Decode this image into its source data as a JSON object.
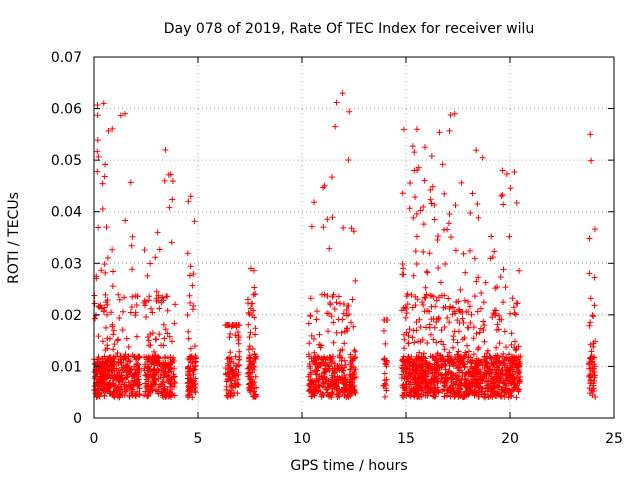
{
  "chart_data": {
    "type": "scatter",
    "title": "Day 078 of 2019, Rate Of TEC Index for receiver wilu",
    "xlabel": "GPS time / hours",
    "ylabel": "ROTI / TECUs",
    "xlim": [
      0,
      25
    ],
    "ylim": [
      0,
      0.07
    ],
    "x_ticks": [
      0,
      5,
      10,
      15,
      20,
      25
    ],
    "x_tick_labels": [
      "0",
      "5",
      "10",
      "15",
      "20",
      "25"
    ],
    "y_ticks": [
      0,
      0.01,
      0.02,
      0.03,
      0.04,
      0.05,
      0.06,
      0.07
    ],
    "y_tick_labels": [
      "0",
      "0.01",
      "0.02",
      "0.03",
      "0.04",
      "0.05",
      "0.06",
      "0.07"
    ],
    "grid": true,
    "marker": "plus",
    "series": [
      {
        "name": "ROTI",
        "color": "#ff0000",
        "clusters": [
          {
            "start": 0.0,
            "end": 1.0,
            "count": 260,
            "peak": 0.061
          },
          {
            "start": 1.05,
            "end": 2.2,
            "count": 190,
            "peak": 0.059
          },
          {
            "start": 2.4,
            "end": 3.3,
            "count": 150,
            "peak": 0.036
          },
          {
            "start": 3.3,
            "end": 3.9,
            "count": 110,
            "peak": 0.052
          },
          {
            "start": 4.5,
            "end": 4.9,
            "count": 90,
            "peak": 0.043
          },
          {
            "start": 6.3,
            "end": 7.0,
            "count": 100,
            "peak": 0.018
          },
          {
            "start": 7.4,
            "end": 7.8,
            "count": 90,
            "peak": 0.029
          },
          {
            "start": 10.3,
            "end": 11.4,
            "count": 170,
            "peak": 0.045
          },
          {
            "start": 11.4,
            "end": 12.6,
            "count": 200,
            "peak": 0.063
          },
          {
            "start": 13.9,
            "end": 14.1,
            "count": 25,
            "peak": 0.019
          },
          {
            "start": 14.8,
            "end": 16.4,
            "count": 380,
            "peak": 0.056
          },
          {
            "start": 16.4,
            "end": 18.8,
            "count": 460,
            "peak": 0.059
          },
          {
            "start": 18.8,
            "end": 20.5,
            "count": 330,
            "peak": 0.048
          },
          {
            "start": 23.8,
            "end": 24.1,
            "count": 60,
            "peak": 0.055
          }
        ]
      }
    ]
  }
}
